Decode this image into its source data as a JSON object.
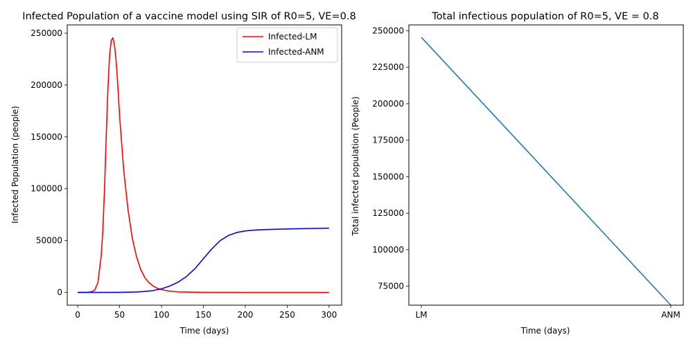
{
  "chart_data": [
    {
      "type": "line",
      "title": "Infected Population of a vaccine model using SIR of R0=5, VE=0.8",
      "xlabel": "Time (days)",
      "ylabel": "Infected Population (people)",
      "xlim": [
        -12.5,
        315
      ],
      "ylim": [
        -12300,
        258000
      ],
      "xticks": [
        0,
        50,
        100,
        150,
        200,
        250,
        300
      ],
      "xtick_labels": [
        "0",
        "50",
        "100",
        "150",
        "200",
        "250",
        "300"
      ],
      "yticks": [
        0,
        50000,
        100000,
        150000,
        200000,
        250000
      ],
      "ytick_labels": [
        "0",
        "50000",
        "100000",
        "150000",
        "200000",
        "250000"
      ],
      "grid": false,
      "legend": "top-right",
      "series": [
        {
          "name": "Infected-LM",
          "color": "#ff0000",
          "x": [
            0,
            10,
            15,
            20,
            24,
            28,
            30,
            32,
            34,
            36,
            38,
            40,
            42,
            44,
            46,
            48,
            50,
            55,
            60,
            65,
            70,
            75,
            80,
            85,
            90,
            95,
            100,
            110,
            120,
            150,
            200,
            250,
            300
          ],
          "y": [
            0,
            80,
            400,
            2000,
            9000,
            35000,
            60000,
            100000,
            150000,
            195000,
            228000,
            243000,
            245500,
            238000,
            222000,
            198000,
            170000,
            117000,
            80000,
            53000,
            35000,
            22500,
            14500,
            9500,
            6200,
            4000,
            2700,
            1200,
            500,
            100,
            10,
            0,
            0
          ]
        },
        {
          "name": "Infected-ANM",
          "color": "#0000ff",
          "x": [
            0,
            25,
            50,
            70,
            80,
            90,
            100,
            110,
            120,
            130,
            140,
            150,
            160,
            170,
            180,
            190,
            200,
            210,
            220,
            240,
            260,
            280,
            300
          ],
          "y": [
            0,
            10,
            80,
            450,
            900,
            1800,
            3500,
            6200,
            10000,
            15500,
            23000,
            32500,
            42000,
            50000,
            55000,
            57800,
            59300,
            60100,
            60500,
            61000,
            61400,
            61700,
            62000
          ]
        }
      ]
    },
    {
      "type": "line",
      "title": "Total infectious population of R0=5, VE = 0.8",
      "xlabel": "Time (days)",
      "ylabel": "Total infected population (People)",
      "categories": [
        "LM",
        "ANM"
      ],
      "ylim": [
        62000,
        254000
      ],
      "yticks": [
        75000,
        100000,
        125000,
        150000,
        175000,
        200000,
        225000,
        250000
      ],
      "ytick_labels": [
        "75000",
        "100000",
        "125000",
        "150000",
        "175000",
        "200000",
        "225000",
        "250000"
      ],
      "grid": false,
      "series": [
        {
          "color": "#1f77b4",
          "values": [
            245500,
            62000
          ]
        }
      ]
    }
  ]
}
